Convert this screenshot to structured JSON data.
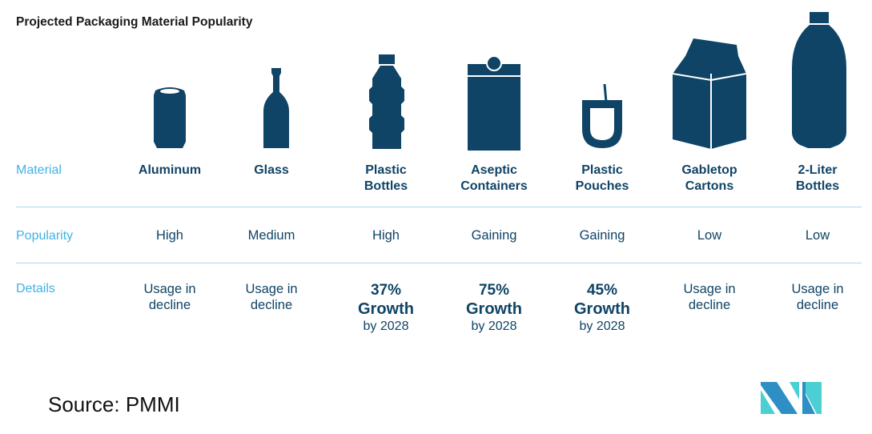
{
  "title": "Projected Packaging Material Popularity",
  "row_labels": {
    "material": "Material",
    "popularity": "Popularity",
    "details": "Details"
  },
  "items": [
    {
      "icon": "aluminum-can-icon",
      "material": [
        "Aluminum",
        ""
      ],
      "popularity": "High",
      "details": {
        "type": "text",
        "lines": [
          "Usage in",
          "decline"
        ]
      }
    },
    {
      "icon": "glass-bottle-icon",
      "material": [
        "Glass",
        ""
      ],
      "popularity": "Medium",
      "details": {
        "type": "text",
        "lines": [
          "Usage in",
          "decline"
        ]
      }
    },
    {
      "icon": "plastic-bottle-icon",
      "material": [
        "Plastic",
        "Bottles"
      ],
      "popularity": "High",
      "details": {
        "type": "growth",
        "pct": "37%",
        "growth": "Growth",
        "by": "by 2028"
      }
    },
    {
      "icon": "aseptic-carton-icon",
      "material": [
        "Aseptic",
        "Containers"
      ],
      "popularity": "Gaining",
      "details": {
        "type": "growth",
        "pct": "75%",
        "growth": "Growth",
        "by": "by 2028"
      }
    },
    {
      "icon": "pouch-icon",
      "material": [
        "Plastic",
        "Pouches"
      ],
      "popularity": "Gaining",
      "details": {
        "type": "growth",
        "pct": "45%",
        "growth": "Growth",
        "by": "by 2028"
      }
    },
    {
      "icon": "gabletop-carton-icon",
      "material": [
        "Gabletop",
        "Cartons"
      ],
      "popularity": "Low",
      "details": {
        "type": "text",
        "lines": [
          "Usage in",
          "decline"
        ]
      }
    },
    {
      "icon": "two-liter-bottle-icon",
      "material": [
        "2-Liter",
        "Bottles"
      ],
      "popularity": "Low",
      "details": {
        "type": "text",
        "lines": [
          "Usage in",
          "decline"
        ]
      }
    }
  ],
  "source": "Source: PMMI",
  "colors": {
    "navy": "#0f4466",
    "label_blue": "#3fb2e6",
    "divider": "#a9d9ee"
  }
}
